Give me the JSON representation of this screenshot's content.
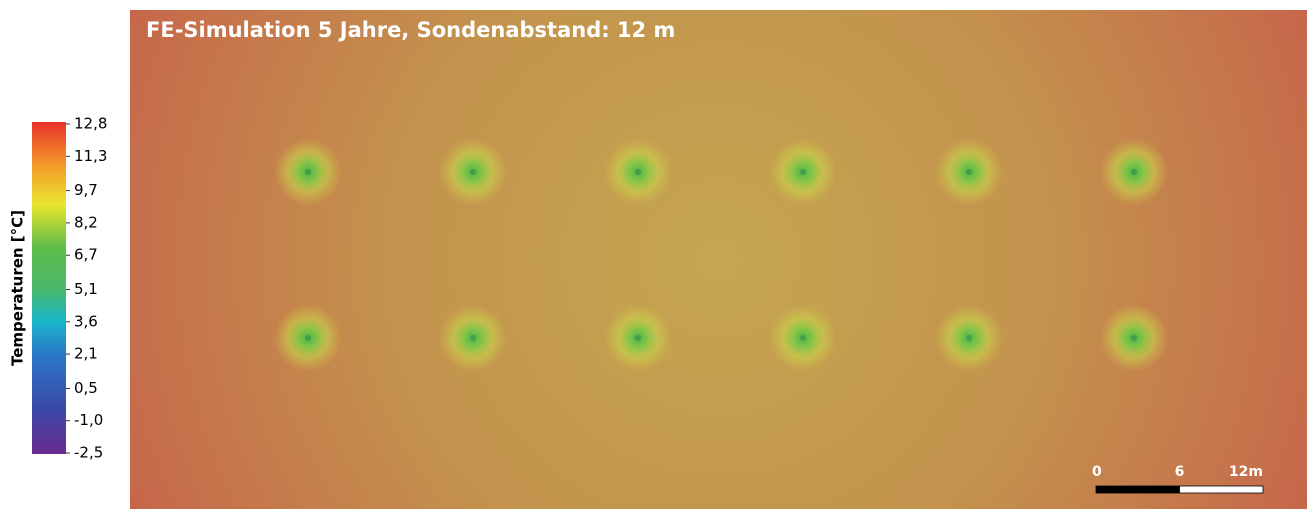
{
  "chart_data": {
    "type": "heatmap",
    "title": "FE-Simulation 5 Jahre, Sondenabstand: 12 m",
    "colorbar_label": "Temperaturen [°C]",
    "clim": [
      -2.5,
      12.8
    ],
    "cticks": [
      {
        "value": 12.8,
        "label": "12,8"
      },
      {
        "value": 11.3,
        "label": "11,3"
      },
      {
        "value": 9.7,
        "label": "9,7"
      },
      {
        "value": 8.2,
        "label": "8,2"
      },
      {
        "value": 6.7,
        "label": "6,7"
      },
      {
        "value": 5.1,
        "label": "5,1"
      },
      {
        "value": 3.6,
        "label": "3,6"
      },
      {
        "value": 2.1,
        "label": "2,1"
      },
      {
        "value": 0.5,
        "label": "0,5"
      },
      {
        "value": -1.0,
        "label": "-1,0"
      },
      {
        "value": -2.5,
        "label": "-2,5"
      }
    ],
    "scale_ticks": [
      0,
      6,
      {
        "value": 12,
        "label": "12m"
      }
    ]
  }
}
